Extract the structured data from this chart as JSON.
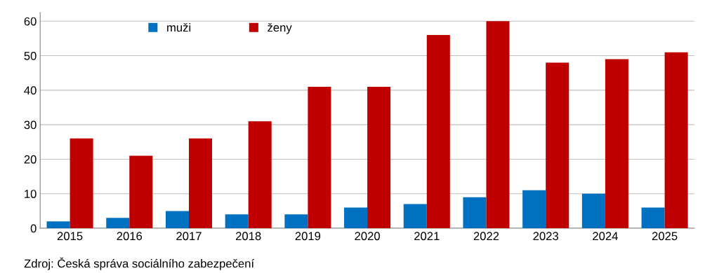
{
  "chart_data": {
    "type": "bar",
    "categories": [
      "2015",
      "2016",
      "2017",
      "2018",
      "2019",
      "2020",
      "2021",
      "2022",
      "2023",
      "2024",
      "2025"
    ],
    "series": [
      {
        "name": "muži",
        "color": "#0070c0",
        "values": [
          2,
          3,
          5,
          4,
          4,
          6,
          7,
          9,
          11,
          10,
          6
        ]
      },
      {
        "name": "ženy",
        "color": "#c00000",
        "values": [
          26,
          21,
          26,
          31,
          41,
          41,
          56,
          60,
          48,
          49,
          51
        ]
      }
    ],
    "ylim": [
      0,
      62.5
    ],
    "yticks": [
      0,
      10,
      20,
      30,
      40,
      50,
      60
    ],
    "grid": "y",
    "legend": "top left",
    "annotations": [
      "Zdroj: Česká správa sociálního zabezpečení"
    ]
  }
}
